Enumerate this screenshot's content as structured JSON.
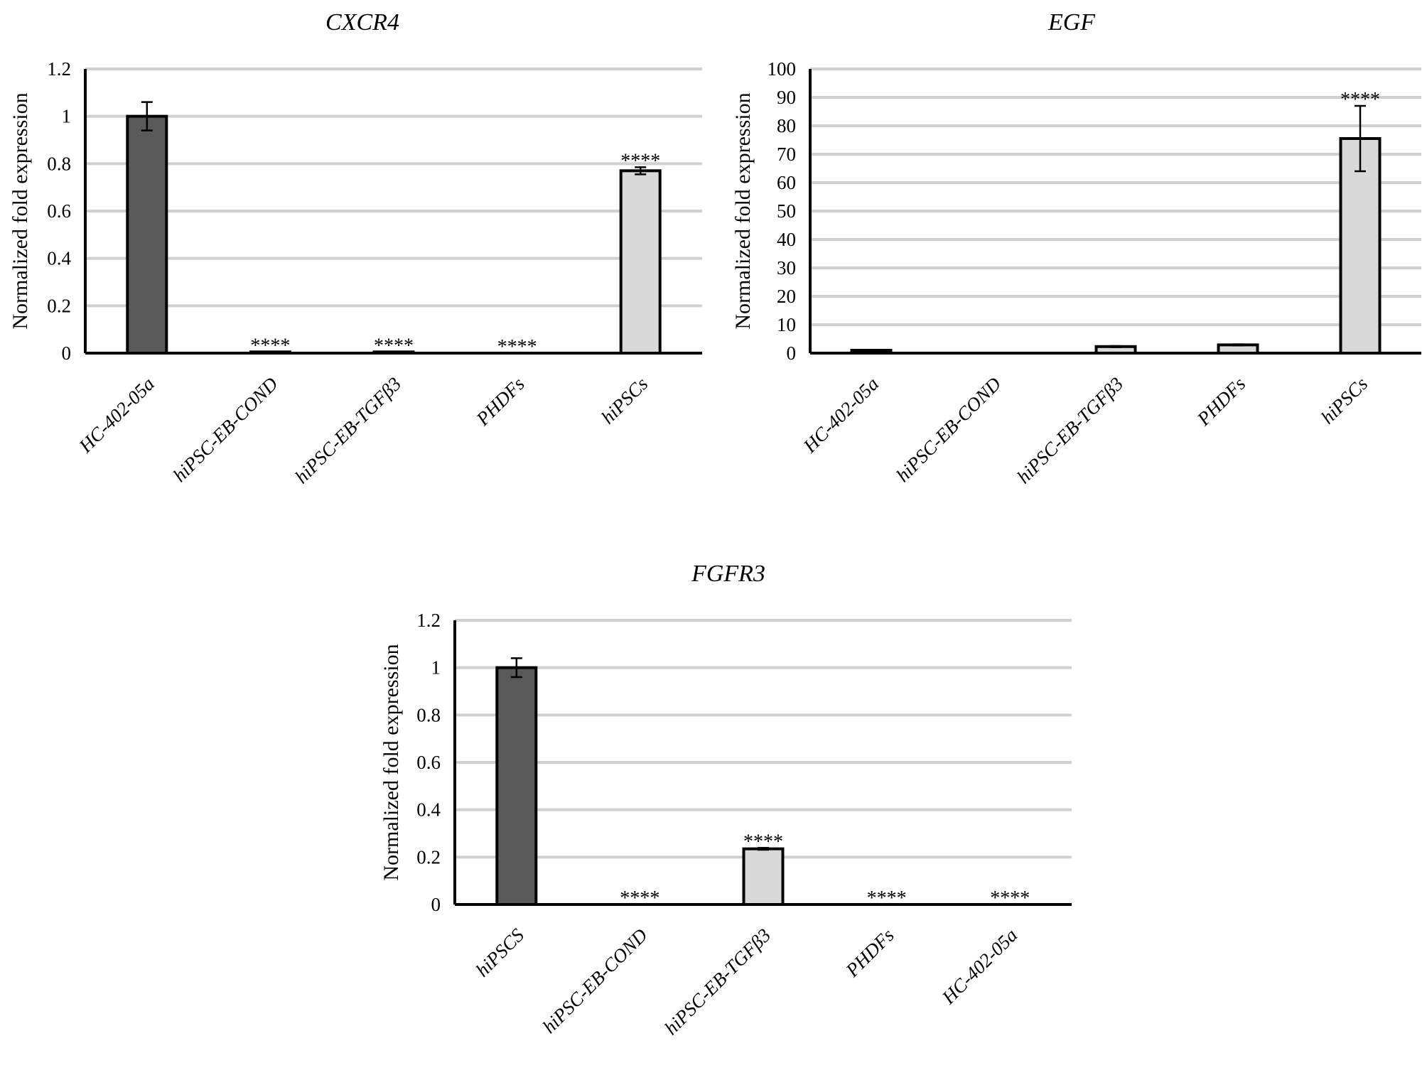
{
  "chart_data": [
    {
      "type": "bar",
      "title": "CXCR4",
      "ylabel": "Normalized fold expression",
      "xlabel": "",
      "ylim": [
        0,
        1.2
      ],
      "yticks": [
        "0",
        "0.2",
        "0.4",
        "0.6",
        "0.8",
        "1",
        "1.2"
      ],
      "grid": true,
      "categories": [
        "HC-402-05a",
        "hiPSC-EB-COND",
        "hiPSC-EB-TGFβ3",
        "PHDFs",
        "hiPSCs"
      ],
      "values": [
        1.0,
        0.005,
        0.005,
        0.0,
        0.77
      ],
      "errors": [
        0.06,
        0.0,
        0.0,
        0.0,
        0.015
      ],
      "significance": [
        "",
        "****",
        "****",
        "****",
        "****"
      ],
      "bar_colors": [
        "#595959",
        "#d9d9d9",
        "#d9d9d9",
        "#d9d9d9",
        "#d9d9d9"
      ]
    },
    {
      "type": "bar",
      "title": "EGF",
      "ylabel": "Normalized fold expression",
      "xlabel": "",
      "ylim": [
        0,
        100
      ],
      "yticks": [
        "0",
        "10",
        "20",
        "30",
        "40",
        "50",
        "60",
        "70",
        "80",
        "90",
        "100"
      ],
      "grid": true,
      "categories": [
        "HC-402-05a",
        "hiPSC-EB-COND",
        "hiPSC-EB-TGFβ3",
        "PHDFs",
        "hiPSCs"
      ],
      "values": [
        1.0,
        0.0,
        2.3,
        2.9,
        75.5
      ],
      "errors": [
        0.0,
        0.0,
        0.2,
        0.2,
        11.5
      ],
      "significance": [
        "",
        "",
        "",
        "",
        "****"
      ],
      "bar_colors": [
        "#595959",
        "#d9d9d9",
        "#d9d9d9",
        "#d9d9d9",
        "#d9d9d9"
      ]
    },
    {
      "type": "bar",
      "title": "FGFR3",
      "ylabel": "Normalized fold expression",
      "xlabel": "",
      "ylim": [
        0,
        1.2
      ],
      "yticks": [
        "0",
        "0.2",
        "0.4",
        "0.6",
        "0.8",
        "1",
        "1.2"
      ],
      "grid": true,
      "categories": [
        "hiPSCS",
        "hiPSC-EB-COND",
        "hiPSC-EB-TGFβ3",
        "PHDFs",
        "HC-402-05a"
      ],
      "values": [
        1.0,
        0.0,
        0.235,
        0.0,
        0.0
      ],
      "errors": [
        0.04,
        0.0,
        0.004,
        0.0,
        0.0
      ],
      "significance": [
        "",
        "****",
        "****",
        "****",
        "****"
      ],
      "bar_colors": [
        "#595959",
        "#d9d9d9",
        "#d9d9d9",
        "#d9d9d9",
        "#d9d9d9"
      ]
    }
  ]
}
